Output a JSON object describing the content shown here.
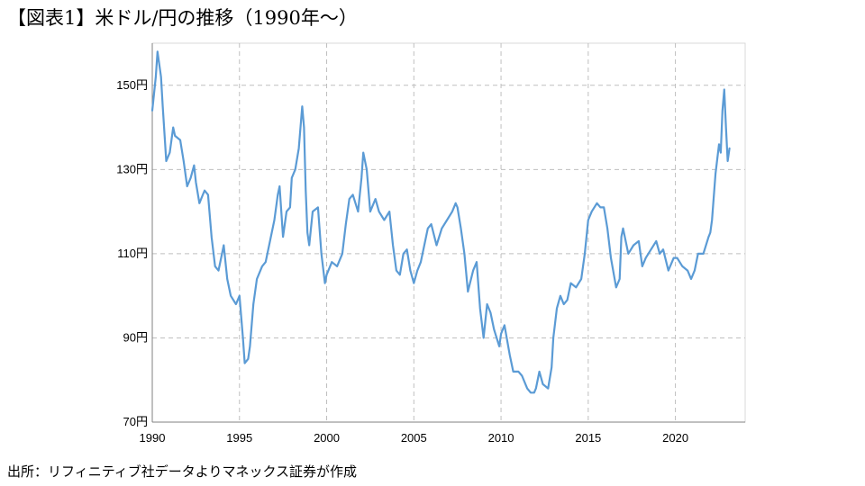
{
  "title": "【図表1】米ドル/円の推移（1990年～）",
  "source": "出所：リフィニティブ社データよりマネックス証券が作成",
  "chart_data": {
    "type": "line",
    "title": "【図表1】米ドル/円の推移（1990年～）",
    "xlabel": "",
    "ylabel": "",
    "xlim": [
      1990,
      2024
    ],
    "ylim": [
      70,
      160
    ],
    "x_ticks": [
      "1990",
      "1995",
      "2000",
      "2005",
      "2010",
      "2015",
      "2020"
    ],
    "y_ticks": [
      "70円",
      "90円",
      "110円",
      "130円",
      "150円"
    ],
    "grid": true,
    "line_color": "#5b9bd5",
    "series": [
      {
        "name": "",
        "points": [
          [
            1990.0,
            144
          ],
          [
            1990.2,
            152
          ],
          [
            1990.3,
            158
          ],
          [
            1990.5,
            152
          ],
          [
            1990.6,
            145
          ],
          [
            1990.8,
            132
          ],
          [
            1991.0,
            134
          ],
          [
            1991.2,
            140
          ],
          [
            1991.3,
            138
          ],
          [
            1991.6,
            137
          ],
          [
            1991.8,
            132
          ],
          [
            1992.0,
            126
          ],
          [
            1992.2,
            128
          ],
          [
            1992.4,
            131
          ],
          [
            1992.5,
            127
          ],
          [
            1992.7,
            122
          ],
          [
            1992.9,
            124
          ],
          [
            1993.0,
            125
          ],
          [
            1993.2,
            124
          ],
          [
            1993.4,
            114
          ],
          [
            1993.6,
            107
          ],
          [
            1993.8,
            106
          ],
          [
            1994.0,
            110
          ],
          [
            1994.1,
            112
          ],
          [
            1994.3,
            104
          ],
          [
            1994.5,
            100
          ],
          [
            1994.8,
            98
          ],
          [
            1995.0,
            100
          ],
          [
            1995.2,
            90
          ],
          [
            1995.3,
            84
          ],
          [
            1995.5,
            85
          ],
          [
            1995.6,
            88
          ],
          [
            1995.8,
            98
          ],
          [
            1996.0,
            104
          ],
          [
            1996.3,
            107
          ],
          [
            1996.5,
            108
          ],
          [
            1996.7,
            112
          ],
          [
            1997.0,
            118
          ],
          [
            1997.2,
            124
          ],
          [
            1997.3,
            126
          ],
          [
            1997.5,
            114
          ],
          [
            1997.7,
            120
          ],
          [
            1997.9,
            121
          ],
          [
            1998.0,
            128
          ],
          [
            1998.2,
            130
          ],
          [
            1998.4,
            135
          ],
          [
            1998.6,
            145
          ],
          [
            1998.7,
            140
          ],
          [
            1998.8,
            125
          ],
          [
            1998.9,
            115
          ],
          [
            1999.0,
            112
          ],
          [
            1999.2,
            120
          ],
          [
            1999.5,
            121
          ],
          [
            1999.7,
            110
          ],
          [
            1999.9,
            103
          ],
          [
            2000.0,
            105
          ],
          [
            2000.3,
            108
          ],
          [
            2000.6,
            107
          ],
          [
            2000.9,
            110
          ],
          [
            2001.1,
            117
          ],
          [
            2001.3,
            123
          ],
          [
            2001.5,
            124
          ],
          [
            2001.8,
            120
          ],
          [
            2002.0,
            128
          ],
          [
            2002.1,
            134
          ],
          [
            2002.3,
            130
          ],
          [
            2002.5,
            120
          ],
          [
            2002.8,
            123
          ],
          [
            2003.0,
            120
          ],
          [
            2003.3,
            118
          ],
          [
            2003.6,
            120
          ],
          [
            2003.8,
            112
          ],
          [
            2004.0,
            106
          ],
          [
            2004.2,
            105
          ],
          [
            2004.4,
            110
          ],
          [
            2004.6,
            111
          ],
          [
            2004.8,
            106
          ],
          [
            2005.0,
            103
          ],
          [
            2005.2,
            106
          ],
          [
            2005.4,
            108
          ],
          [
            2005.6,
            112
          ],
          [
            2005.8,
            116
          ],
          [
            2006.0,
            117
          ],
          [
            2006.3,
            112
          ],
          [
            2006.6,
            116
          ],
          [
            2006.9,
            118
          ],
          [
            2007.2,
            120
          ],
          [
            2007.4,
            122
          ],
          [
            2007.5,
            121
          ],
          [
            2007.7,
            116
          ],
          [
            2007.9,
            110
          ],
          [
            2008.1,
            101
          ],
          [
            2008.4,
            106
          ],
          [
            2008.6,
            108
          ],
          [
            2008.8,
            97
          ],
          [
            2009.0,
            90
          ],
          [
            2009.2,
            98
          ],
          [
            2009.4,
            96
          ],
          [
            2009.6,
            92
          ],
          [
            2009.9,
            88
          ],
          [
            2010.0,
            91
          ],
          [
            2010.2,
            93
          ],
          [
            2010.5,
            86
          ],
          [
            2010.7,
            82
          ],
          [
            2011.0,
            82
          ],
          [
            2011.2,
            81
          ],
          [
            2011.5,
            78
          ],
          [
            2011.7,
            77
          ],
          [
            2011.9,
            77
          ],
          [
            2012.0,
            78
          ],
          [
            2012.2,
            82
          ],
          [
            2012.4,
            79
          ],
          [
            2012.7,
            78
          ],
          [
            2012.9,
            83
          ],
          [
            2013.0,
            90
          ],
          [
            2013.2,
            97
          ],
          [
            2013.4,
            100
          ],
          [
            2013.6,
            98
          ],
          [
            2013.8,
            99
          ],
          [
            2014.0,
            103
          ],
          [
            2014.3,
            102
          ],
          [
            2014.6,
            104
          ],
          [
            2014.8,
            110
          ],
          [
            2015.0,
            118
          ],
          [
            2015.2,
            120
          ],
          [
            2015.5,
            122
          ],
          [
            2015.7,
            121
          ],
          [
            2015.9,
            121
          ],
          [
            2016.1,
            116
          ],
          [
            2016.3,
            109
          ],
          [
            2016.6,
            102
          ],
          [
            2016.8,
            104
          ],
          [
            2016.9,
            114
          ],
          [
            2017.0,
            116
          ],
          [
            2017.3,
            110
          ],
          [
            2017.6,
            112
          ],
          [
            2017.9,
            113
          ],
          [
            2018.1,
            107
          ],
          [
            2018.3,
            109
          ],
          [
            2018.6,
            111
          ],
          [
            2018.9,
            113
          ],
          [
            2019.1,
            110
          ],
          [
            2019.3,
            111
          ],
          [
            2019.6,
            106
          ],
          [
            2019.9,
            109
          ],
          [
            2020.1,
            109
          ],
          [
            2020.4,
            107
          ],
          [
            2020.7,
            106
          ],
          [
            2020.9,
            104
          ],
          [
            2021.1,
            106
          ],
          [
            2021.3,
            110
          ],
          [
            2021.6,
            110
          ],
          [
            2021.9,
            114
          ],
          [
            2022.0,
            115
          ],
          [
            2022.1,
            118
          ],
          [
            2022.3,
            129
          ],
          [
            2022.5,
            136
          ],
          [
            2022.6,
            134
          ],
          [
            2022.7,
            144
          ],
          [
            2022.8,
            149
          ],
          [
            2022.9,
            140
          ],
          [
            2023.0,
            132
          ],
          [
            2023.1,
            135
          ]
        ]
      }
    ]
  }
}
